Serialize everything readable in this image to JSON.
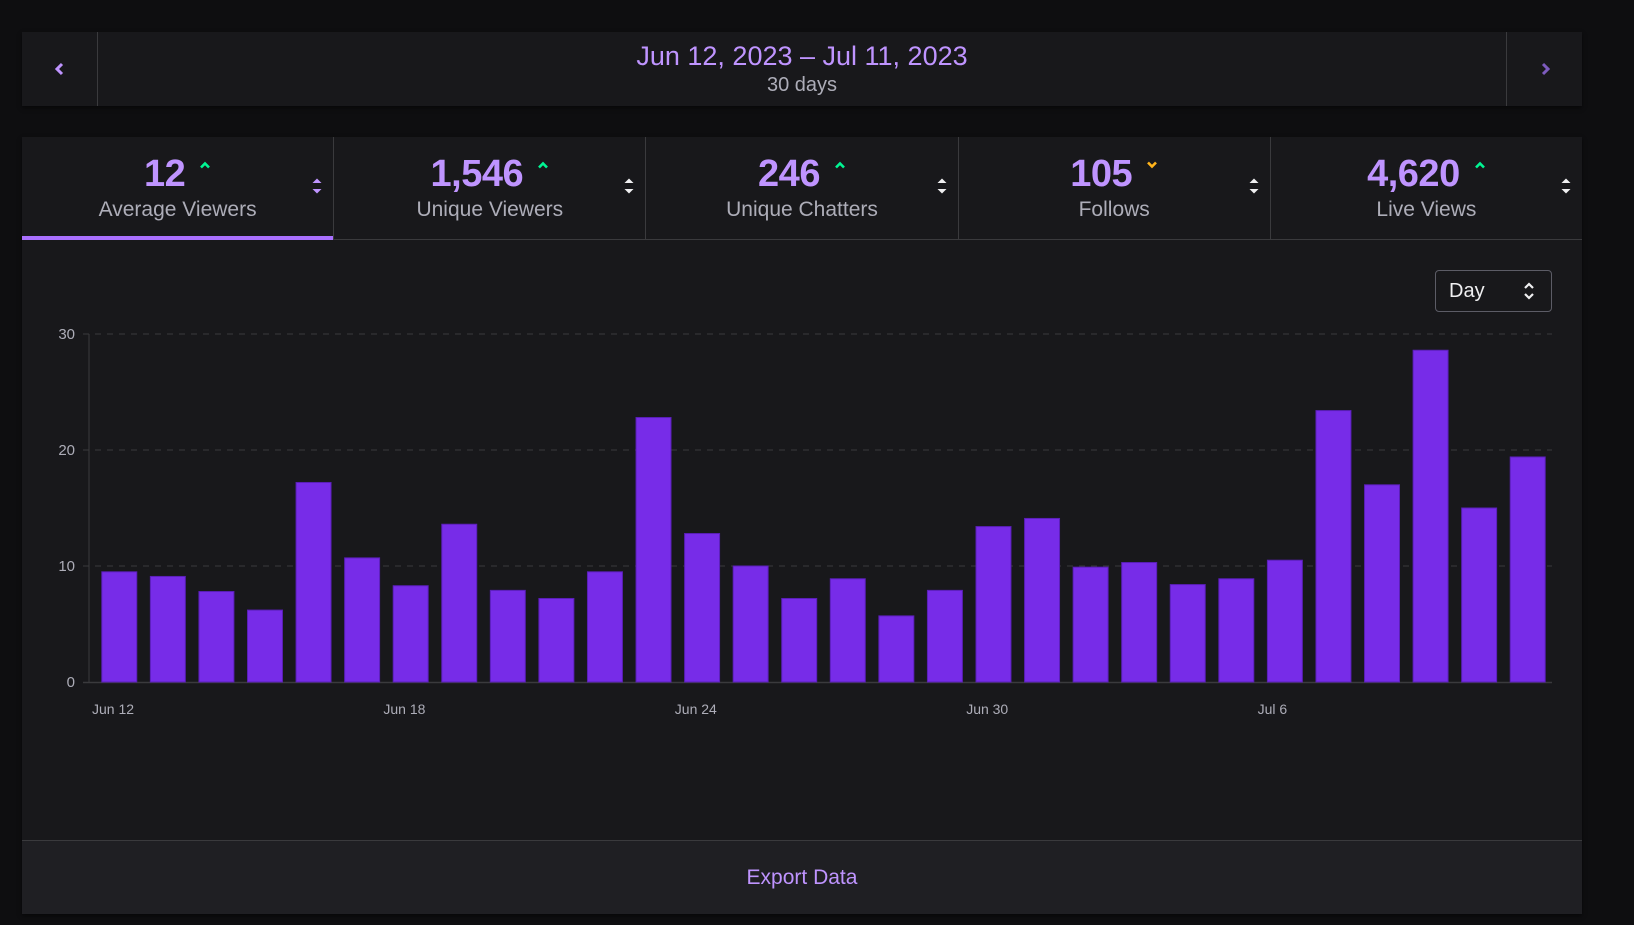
{
  "date_range": {
    "label": "Jun 12, 2023 – Jul 11, 2023",
    "duration": "30 days",
    "prev_icon": "chevron-left-icon",
    "next_icon": "chevron-right-icon"
  },
  "stats": [
    {
      "value": "12",
      "label": "Average Viewers",
      "trend": "up",
      "active": true
    },
    {
      "value": "1,546",
      "label": "Unique Viewers",
      "trend": "up",
      "active": false
    },
    {
      "value": "246",
      "label": "Unique Chatters",
      "trend": "up",
      "active": false
    },
    {
      "value": "105",
      "label": "Follows",
      "trend": "down",
      "active": false
    },
    {
      "value": "4,620",
      "label": "Live Views",
      "trend": "up",
      "active": false
    }
  ],
  "colors": {
    "accent": "#bf94ff",
    "active_tab": "#a970ff",
    "bar": "#772ce8",
    "trend_up": "#00f593",
    "trend_down": "#ffb31a",
    "background": "#0e0e10",
    "panel": "#18181b"
  },
  "interval_select": {
    "value": "Day"
  },
  "chart_data": {
    "type": "bar",
    "title": "",
    "xlabel": "",
    "ylabel": "",
    "ylim": [
      0,
      30
    ],
    "yticks": [
      0,
      10,
      20,
      30
    ],
    "grid": true,
    "legend_position": "bottom",
    "xtick_labels": [
      {
        "index": 0,
        "label": "Jun 12"
      },
      {
        "index": 6,
        "label": "Jun 18"
      },
      {
        "index": 12,
        "label": "Jun 24"
      },
      {
        "index": 18,
        "label": "Jun 30"
      },
      {
        "index": 24,
        "label": "Jul 6"
      }
    ],
    "categories": [
      "Jun 12",
      "Jun 13",
      "Jun 14",
      "Jun 15",
      "Jun 16",
      "Jun 17",
      "Jun 18",
      "Jun 19",
      "Jun 20",
      "Jun 21",
      "Jun 22",
      "Jun 23",
      "Jun 24",
      "Jun 25",
      "Jun 26",
      "Jun 27",
      "Jun 28",
      "Jun 29",
      "Jun 30",
      "Jul 1",
      "Jul 2",
      "Jul 3",
      "Jul 4",
      "Jul 5",
      "Jul 6",
      "Jul 7",
      "Jul 8",
      "Jul 9",
      "Jul 10",
      "Jul 11"
    ],
    "series": [
      {
        "name": "Average Viewers",
        "values": [
          9.5,
          9.1,
          7.8,
          6.2,
          17.2,
          10.7,
          8.3,
          13.6,
          7.9,
          7.2,
          9.5,
          22.8,
          12.8,
          10.0,
          7.2,
          8.9,
          5.7,
          7.9,
          13.4,
          14.1,
          9.9,
          10.3,
          8.4,
          8.9,
          10.5,
          23.4,
          17.0,
          28.6,
          15.0,
          19.4
        ]
      }
    ]
  },
  "footer": {
    "export_label": "Export Data"
  }
}
